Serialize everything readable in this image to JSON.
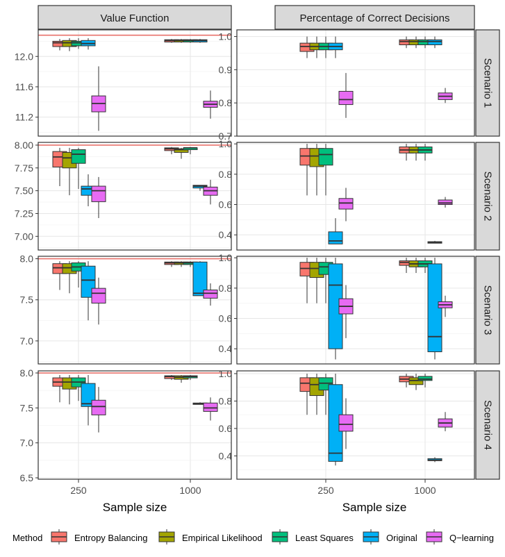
{
  "chart_data": {
    "type": "boxplot",
    "columns": [
      "Value Function",
      "Percentage of Correct Decisions"
    ],
    "rows": [
      "Scenario 1",
      "Scenario 2",
      "Scenario 3",
      "Scenario 4"
    ],
    "xlabel": "Sample size",
    "categories": [
      "250",
      "1000"
    ],
    "methods": [
      "Entropy Balancing",
      "Empirical Likelihood",
      "Least Squares",
      "Original",
      "Q−learning"
    ],
    "legend_title": "Method",
    "colors": {
      "Entropy Balancing": "#F8766D",
      "Empirical Likelihood": "#A3A500",
      "Least Squares": "#00BF7D",
      "Original": "#00B0F6",
      "Q−learning": "#E76BF3"
    },
    "reference_line_color": "#E8726B",
    "panels": [
      {
        "col": 0,
        "row": 0,
        "ylim": [
          10.95,
          12.35
        ],
        "yticks": [
          11.2,
          11.6,
          12.0
        ],
        "ytick_labels": [
          "11.2",
          "11.6",
          "12.0"
        ],
        "reference_line": 12.28,
        "boxes": [
          [
            [
              12.08,
              12.13,
              12.18,
              12.2,
              12.23
            ],
            [
              12.07,
              12.13,
              12.18,
              12.21,
              12.24
            ],
            [
              12.1,
              12.14,
              12.18,
              12.2,
              12.24
            ],
            [
              12.09,
              12.14,
              12.17,
              12.21,
              12.24
            ],
            [
              11.02,
              11.27,
              11.38,
              11.48,
              11.87
            ]
          ],
          [
            [
              12.18,
              12.19,
              12.21,
              12.22,
              12.23
            ],
            [
              12.18,
              12.19,
              12.21,
              12.22,
              12.23
            ],
            [
              12.18,
              12.19,
              12.21,
              12.22,
              12.23
            ],
            [
              12.18,
              12.19,
              12.21,
              12.22,
              12.23
            ],
            [
              11.18,
              11.33,
              11.37,
              11.41,
              11.55
            ]
          ]
        ]
      },
      {
        "col": 1,
        "row": 0,
        "ylim": [
          0.7,
          1.02
        ],
        "yticks": [
          0.7,
          0.8,
          0.9,
          1.0
        ],
        "ytick_labels": [
          "0.7",
          "0.8",
          "0.9",
          "1.0"
        ],
        "reference_line": null,
        "boxes": [
          [
            [
              0.935,
              0.955,
              0.97,
              0.98,
              1.0
            ],
            [
              0.935,
              0.96,
              0.97,
              0.98,
              1.0
            ],
            [
              0.935,
              0.96,
              0.97,
              0.98,
              1.0
            ],
            [
              0.935,
              0.96,
              0.97,
              0.98,
              1.0
            ],
            [
              0.755,
              0.795,
              0.81,
              0.835,
              0.89
            ]
          ],
          [
            [
              0.965,
              0.975,
              0.985,
              0.99,
              1.0
            ],
            [
              0.965,
              0.975,
              0.985,
              0.99,
              1.0
            ],
            [
              0.965,
              0.975,
              0.985,
              0.99,
              1.0
            ],
            [
              0.965,
              0.975,
              0.985,
              0.99,
              1.0
            ],
            [
              0.8,
              0.81,
              0.82,
              0.83,
              0.845
            ]
          ]
        ]
      },
      {
        "col": 0,
        "row": 1,
        "ylim": [
          6.85,
          8.03
        ],
        "yticks": [
          7.0,
          7.25,
          7.5,
          7.75,
          8.0
        ],
        "ytick_labels": [
          "7.00",
          "7.25",
          "7.50",
          "7.75",
          "8.00"
        ],
        "reference_line": 8.0,
        "boxes": [
          [
            [
              7.55,
              7.76,
              7.87,
              7.93,
              7.97
            ],
            [
              7.45,
              7.75,
              7.86,
              7.92,
              7.97
            ],
            [
              7.52,
              7.8,
              7.9,
              7.95,
              7.97
            ],
            [
              7.33,
              7.45,
              7.52,
              7.55,
              7.68
            ],
            [
              7.2,
              7.38,
              7.5,
              7.55,
              7.65
            ]
          ],
          [
            [
              7.9,
              7.94,
              7.96,
              7.97,
              7.98
            ],
            [
              7.85,
              7.92,
              7.95,
              7.96,
              7.97
            ],
            [
              7.9,
              7.95,
              7.97,
              7.97,
              7.98
            ],
            [
              7.5,
              7.53,
              7.55,
              7.56,
              7.56
            ],
            [
              7.35,
              7.45,
              7.5,
              7.54,
              7.62
            ]
          ]
        ]
      },
      {
        "col": 1,
        "row": 1,
        "ylim": [
          0.3,
          1.01
        ],
        "yticks": [
          0.4,
          0.6,
          0.8,
          1.0
        ],
        "ytick_labels": [
          "0.4",
          "0.6",
          "0.8",
          "1.0"
        ],
        "reference_line": null,
        "boxes": [
          [
            [
              0.66,
              0.86,
              0.92,
              0.97,
              1.0
            ],
            [
              0.66,
              0.85,
              0.92,
              0.97,
              1.0
            ],
            [
              0.66,
              0.86,
              0.93,
              0.97,
              1.0
            ],
            [
              0.34,
              0.34,
              0.36,
              0.42,
              0.51
            ],
            [
              0.49,
              0.57,
              0.61,
              0.64,
              0.71
            ]
          ],
          [
            [
              0.89,
              0.94,
              0.96,
              0.98,
              1.0
            ],
            [
              0.89,
              0.94,
              0.96,
              0.98,
              1.0
            ],
            [
              0.89,
              0.94,
              0.96,
              0.98,
              1.0
            ],
            [
              0.345,
              0.345,
              0.35,
              0.355,
              0.36
            ],
            [
              0.58,
              0.6,
              0.61,
              0.63,
              0.65
            ]
          ]
        ]
      },
      {
        "col": 0,
        "row": 2,
        "ylim": [
          6.72,
          8.03
        ],
        "yticks": [
          7.0,
          7.5,
          8.0
        ],
        "ytick_labels": [
          "7.0",
          "7.5",
          "8.0"
        ],
        "reference_line": 8.0,
        "boxes": [
          [
            [
              7.62,
              7.82,
              7.89,
              7.94,
              7.97
            ],
            [
              7.58,
              7.82,
              7.89,
              7.94,
              7.97
            ],
            [
              7.65,
              7.85,
              7.9,
              7.95,
              7.97
            ],
            [
              7.25,
              7.53,
              7.74,
              7.91,
              7.97
            ],
            [
              7.2,
              7.46,
              7.58,
              7.64,
              7.77
            ]
          ],
          [
            [
              7.9,
              7.93,
              7.95,
              7.96,
              7.97
            ],
            [
              7.9,
              7.93,
              7.95,
              7.96,
              7.97
            ],
            [
              7.9,
              7.93,
              7.95,
              7.96,
              7.97
            ],
            [
              7.55,
              7.55,
              7.58,
              7.96,
              7.97
            ],
            [
              7.43,
              7.52,
              7.58,
              7.62,
              7.7
            ]
          ]
        ]
      },
      {
        "col": 1,
        "row": 2,
        "ylim": [
          0.3,
          1.01
        ],
        "yticks": [
          0.4,
          0.6,
          0.8,
          1.0
        ],
        "ytick_labels": [
          "0.4",
          "0.6",
          "0.8",
          "1.0"
        ],
        "reference_line": null,
        "boxes": [
          [
            [
              0.7,
              0.88,
              0.93,
              0.97,
              1.0
            ],
            [
              0.7,
              0.87,
              0.93,
              0.97,
              1.0
            ],
            [
              0.7,
              0.89,
              0.94,
              0.97,
              1.0
            ],
            [
              0.33,
              0.4,
              0.82,
              0.96,
              1.0
            ],
            [
              0.47,
              0.63,
              0.68,
              0.73,
              0.82
            ]
          ],
          [
            [
              0.9,
              0.95,
              0.97,
              0.98,
              1.0
            ],
            [
              0.9,
              0.94,
              0.96,
              0.98,
              1.0
            ],
            [
              0.9,
              0.94,
              0.96,
              0.98,
              1.0
            ],
            [
              0.33,
              0.38,
              0.48,
              0.96,
              1.0
            ],
            [
              0.61,
              0.67,
              0.69,
              0.71,
              0.75
            ]
          ]
        ]
      },
      {
        "col": 0,
        "row": 3,
        "ylim": [
          6.48,
          8.03
        ],
        "yticks": [
          6.5,
          7.0,
          7.5,
          8.0
        ],
        "ytick_labels": [
          "6.5",
          "7.0",
          "7.5",
          "8.0"
        ],
        "reference_line": 8.0,
        "boxes": [
          [
            [
              7.58,
              7.81,
              7.87,
              7.93,
              7.97
            ],
            [
              7.55,
              7.77,
              7.87,
              7.93,
              7.97
            ],
            [
              7.6,
              7.8,
              7.87,
              7.93,
              7.97
            ],
            [
              7.25,
              7.52,
              7.56,
              7.85,
              7.97
            ],
            [
              7.15,
              7.4,
              7.52,
              7.61,
              7.8
            ]
          ],
          [
            [
              7.9,
              7.92,
              7.95,
              7.96,
              7.97
            ],
            [
              7.86,
              7.91,
              7.94,
              7.96,
              7.97
            ],
            [
              7.9,
              7.93,
              7.95,
              7.96,
              7.97
            ],
            [
              7.55,
              7.55,
              7.56,
              7.57,
              7.58
            ],
            [
              7.32,
              7.45,
              7.5,
              7.57,
              7.65
            ]
          ]
        ]
      },
      {
        "col": 1,
        "row": 3,
        "ylim": [
          0.23,
          1.02
        ],
        "yticks": [
          0.4,
          0.6,
          0.8,
          1.0
        ],
        "ytick_labels": [
          "0.4",
          "0.6",
          "0.8",
          "1.0"
        ],
        "reference_line": null,
        "boxes": [
          [
            [
              0.7,
              0.87,
              0.93,
              0.97,
              1.0
            ],
            [
              0.7,
              0.84,
              0.92,
              0.97,
              1.0
            ],
            [
              0.7,
              0.88,
              0.93,
              0.97,
              1.0
            ],
            [
              0.33,
              0.36,
              0.42,
              0.92,
              1.0
            ],
            [
              0.45,
              0.58,
              0.63,
              0.7,
              0.82
            ]
          ],
          [
            [
              0.9,
              0.94,
              0.96,
              0.98,
              1.0
            ],
            [
              0.88,
              0.92,
              0.95,
              0.97,
              1.0
            ],
            [
              0.9,
              0.95,
              0.96,
              0.98,
              1.0
            ],
            [
              0.355,
              0.365,
              0.37,
              0.38,
              0.39
            ],
            [
              0.58,
              0.61,
              0.64,
              0.67,
              0.72
            ]
          ]
        ]
      }
    ]
  }
}
